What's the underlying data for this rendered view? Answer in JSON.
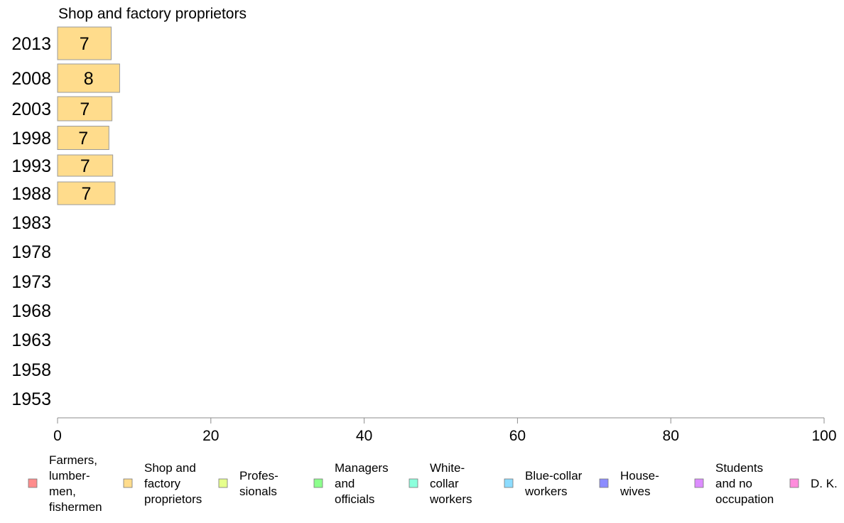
{
  "chart_data": {
    "type": "bar",
    "orientation": "horizontal",
    "title": "Shop and factory proprietors",
    "categories": [
      "2013",
      "2008",
      "2003",
      "1998",
      "1993",
      "1988",
      "1983",
      "1978",
      "1973",
      "1968",
      "1963",
      "1958",
      "1953"
    ],
    "series": [
      {
        "name": "Shop and factory proprietors",
        "values": [
          7.0,
          8.1,
          7.1,
          6.7,
          7.2,
          7.5,
          null,
          null,
          null,
          null,
          null,
          null,
          null
        ],
        "labels": [
          "7",
          "8",
          "7",
          "7",
          "7",
          "7",
          null,
          null,
          null,
          null,
          null,
          null,
          null
        ],
        "color": "#FFDC8C"
      }
    ],
    "xlim": [
      0,
      100
    ],
    "xticks": [
      "0",
      "20",
      "40",
      "60",
      "80",
      "100"
    ],
    "grid": false,
    "legend_position": "bottom",
    "legend": [
      {
        "lines": [
          "Farmers,",
          "lumber-",
          "men,",
          "fishermen"
        ],
        "color": "#FF8C8C"
      },
      {
        "lines": [
          "Shop and",
          "factory",
          "proprietors"
        ],
        "color": "#FFDC8C"
      },
      {
        "lines": [
          "Profes-",
          "sionals"
        ],
        "color": "#E6FF8C"
      },
      {
        "lines": [
          "Managers",
          "and",
          "officials"
        ],
        "color": "#8CFF8C"
      },
      {
        "lines": [
          "White-",
          "collar",
          "workers"
        ],
        "color": "#8CFFDC"
      },
      {
        "lines": [
          "Blue-collar",
          "workers"
        ],
        "color": "#8CDCFF"
      },
      {
        "lines": [
          "House-",
          "wives"
        ],
        "color": "#8C8CFF"
      },
      {
        "lines": [
          "Students",
          "and no",
          "occupation"
        ],
        "color": "#DC8CFF"
      },
      {
        "lines": [
          "D. K."
        ],
        "color": "#FF8CDC"
      }
    ]
  }
}
